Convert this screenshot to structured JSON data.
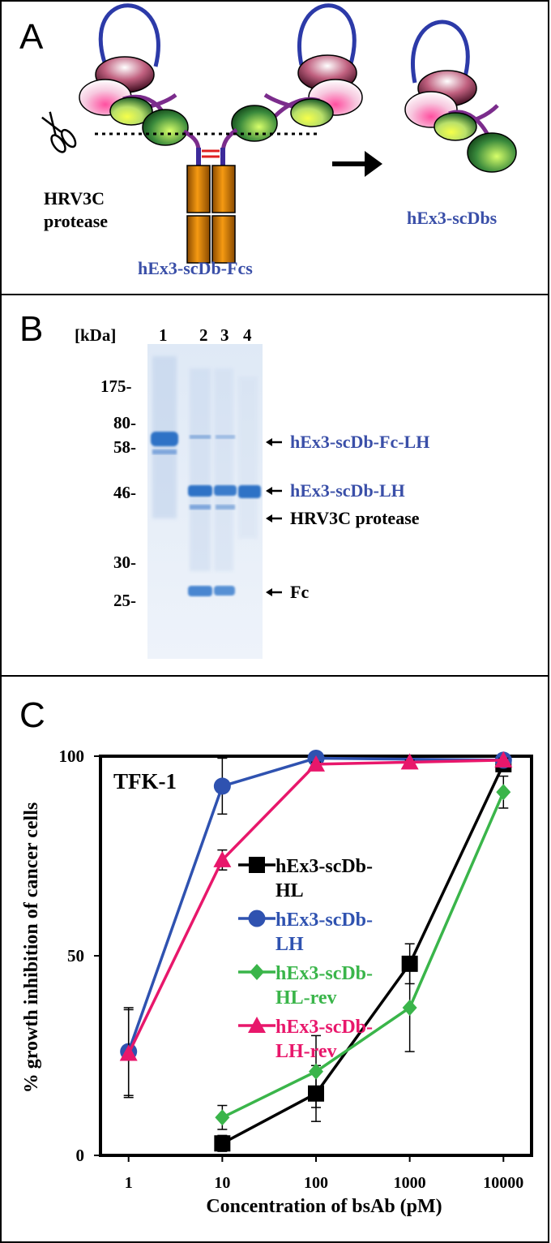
{
  "panel_a": {
    "letter": "A",
    "protease_label_line1": "HRV3C",
    "protease_label_line2": "protease",
    "fc_label": "hEx3-scDb-Fcs",
    "product_label": "hEx3-scDbs"
  },
  "panel_b": {
    "letter": "B",
    "unit_label": "[kDa]",
    "lanes": [
      "1",
      "2",
      "3",
      "4"
    ],
    "markers": [
      "175-",
      "80-",
      "58-",
      "46-",
      "30-",
      "25-"
    ],
    "band_labels": {
      "fc_lh": "hEx3-scDb-Fc-LH",
      "scdb_lh": "hEx3-scDb-LH",
      "protease": "HRV3C protease",
      "fc": "Fc"
    }
  },
  "panel_c": {
    "letter": "C"
  },
  "chart_data": {
    "type": "line",
    "title": "TFK-1",
    "xlabel": "Concentration of bsAb (pM)",
    "ylabel": "% growth inhibition of cancer cells",
    "x_scale": "log",
    "x_ticks": [
      "1",
      "10",
      "100",
      "1000",
      "10000"
    ],
    "y_ticks": [
      "0",
      "50",
      "100"
    ],
    "ylim": [
      0,
      100
    ],
    "legend_position": "center-left",
    "series": [
      {
        "name_line1": "hEx3-scDb-",
        "name_line2": "HL",
        "color": "#000000",
        "marker": "square",
        "x": [
          10,
          100,
          1000,
          10000
        ],
        "y": [
          3,
          15.5,
          48,
          98
        ],
        "err": [
          2,
          7,
          5,
          1
        ]
      },
      {
        "name_line1": "hEx3-scDb-",
        "name_line2": "LH",
        "color": "#2f52b0",
        "marker": "circle",
        "x": [
          1,
          10,
          100,
          10000
        ],
        "y": [
          26,
          92.5,
          99.5,
          99
        ],
        "err": [
          11,
          7,
          0.5,
          0.5
        ]
      },
      {
        "name_line1": "hEx3-scDb-",
        "name_line2": "HL-rev",
        "color": "#3ab54a",
        "marker": "diamond",
        "x": [
          10,
          100,
          1000,
          10000
        ],
        "y": [
          9.5,
          21,
          37,
          91
        ],
        "err": [
          3,
          9,
          11,
          4
        ]
      },
      {
        "name_line1": "hEx3-scDb-",
        "name_line2": "LH-rev",
        "color": "#e8176b",
        "marker": "triangle",
        "x": [
          1,
          10,
          100,
          1000,
          10000
        ],
        "y": [
          25.5,
          74,
          98,
          98.5,
          99
        ],
        "err": [
          11,
          2.5,
          0.5,
          0.5,
          0.5
        ]
      }
    ]
  }
}
